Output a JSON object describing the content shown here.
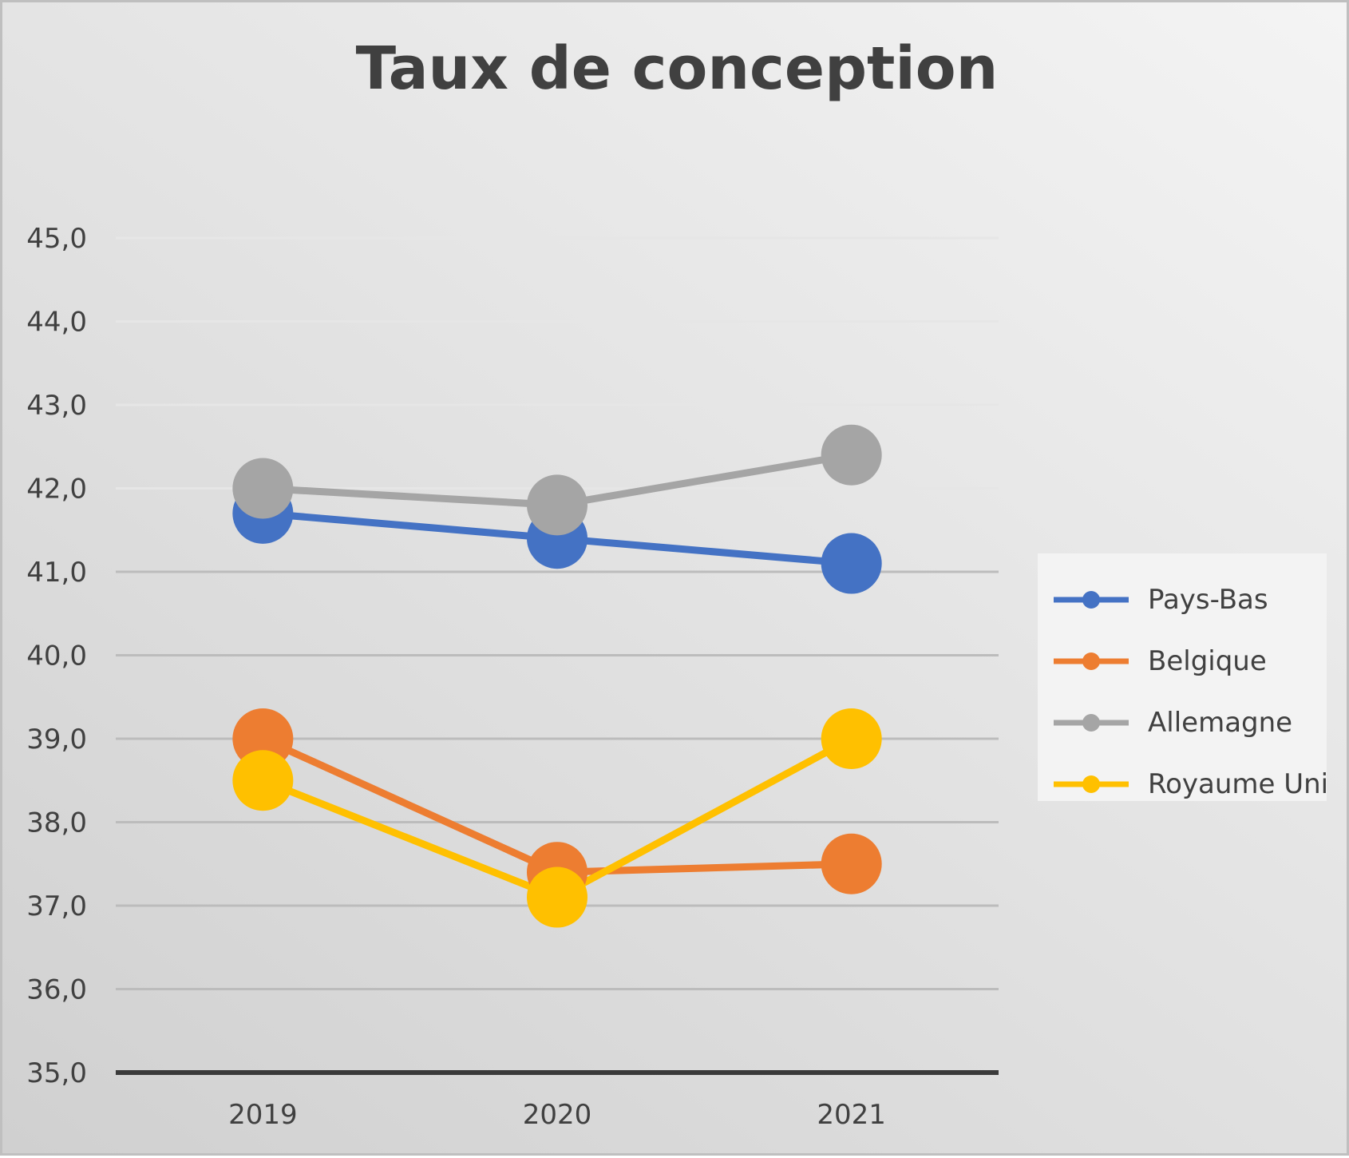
{
  "chart_data": {
    "type": "line",
    "title": "Taux de conception",
    "categories": [
      "2019",
      "2020",
      "2021"
    ],
    "ylim": [
      35.0,
      45.0
    ],
    "yticks": [
      "35,0",
      "36,0",
      "37,0",
      "38,0",
      "39,0",
      "40,0",
      "41,0",
      "42,0",
      "43,0",
      "44,0",
      "45,0"
    ],
    "grid": true,
    "legend_position": "right",
    "series": [
      {
        "name": "Pays-Bas",
        "color": "#4472c4",
        "values": [
          41.7,
          41.4,
          41.1
        ]
      },
      {
        "name": "Belgique",
        "color": "#ed7d31",
        "values": [
          39.0,
          37.4,
          37.5
        ]
      },
      {
        "name": "Allemagne",
        "color": "#a5a5a5",
        "values": [
          42.0,
          41.8,
          42.4
        ]
      },
      {
        "name": "Royaume Uni",
        "color": "#ffc000",
        "values": [
          38.5,
          37.1,
          39.0
        ]
      }
    ]
  }
}
